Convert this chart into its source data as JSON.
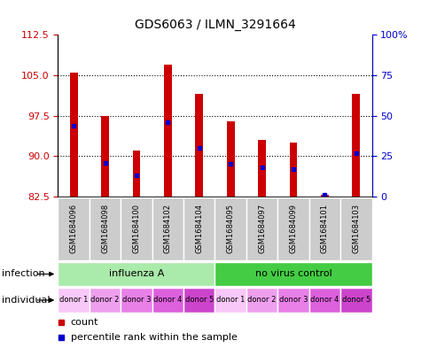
{
  "title": "GDS6063 / ILMN_3291664",
  "samples": [
    "GSM1684096",
    "GSM1684098",
    "GSM1684100",
    "GSM1684102",
    "GSM1684104",
    "GSM1684095",
    "GSM1684097",
    "GSM1684099",
    "GSM1684101",
    "GSM1684103"
  ],
  "count_values": [
    105.5,
    97.5,
    91.0,
    107.0,
    101.5,
    96.5,
    93.0,
    92.5,
    82.9,
    101.5
  ],
  "percentile_values": [
    44,
    21,
    13,
    46,
    30,
    20,
    18,
    17,
    1,
    27
  ],
  "ylim_left": [
    82.5,
    112.5
  ],
  "ylim_right": [
    0,
    100
  ],
  "yticks_left": [
    82.5,
    90.0,
    97.5,
    105.0,
    112.5
  ],
  "yticks_right": [
    0,
    25,
    50,
    75,
    100
  ],
  "infection_groups": [
    {
      "label": "influenza A",
      "start": 0,
      "end": 5,
      "color": "#AAEAAA"
    },
    {
      "label": "no virus control",
      "start": 5,
      "end": 10,
      "color": "#44CC44"
    }
  ],
  "individual_colors": [
    "#F8C8F8",
    "#EEA0EE",
    "#E880E8",
    "#DD60DD",
    "#CC44CC",
    "#F8C8F8",
    "#EEA0EE",
    "#E880E8",
    "#DD60DD",
    "#CC44CC"
  ],
  "individual_labels": [
    "donor 1",
    "donor 2",
    "donor 3",
    "donor 4",
    "donor 5",
    "donor 1",
    "donor 2",
    "donor 3",
    "donor 4",
    "donor 5"
  ],
  "bar_color": "#CC0000",
  "percentile_color": "#0000CC",
  "bar_width": 0.25,
  "base_value": 82.5,
  "label_color_left": "#CC0000",
  "label_color_right": "#0000CC",
  "grid_dotted_at": [
    90.0,
    97.5,
    105.0
  ],
  "legend_count_label": "count",
  "legend_percentile_label": "percentile rank within the sample"
}
